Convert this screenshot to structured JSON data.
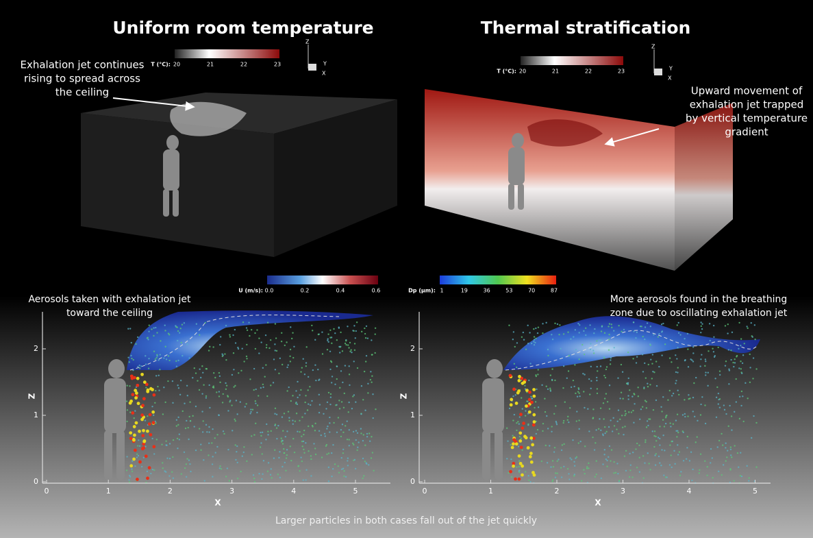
{
  "panels": [
    {
      "title": "Uniform room temperature",
      "annotation": [
        "Exhalation jet continues",
        "rising to spread across",
        "the ceiling"
      ],
      "colorbar": {
        "label": "T (°C):",
        "ticks": [
          "20",
          "21",
          "22",
          "23"
        ]
      },
      "triad": [
        "Z",
        "Y",
        "X"
      ]
    },
    {
      "title": "Thermal stratification",
      "annotation": [
        "Upward movement of",
        "exhalation jet trapped",
        "by vertical temperature",
        "gradient"
      ],
      "colorbar": {
        "label": "T (°C):",
        "ticks": [
          "20",
          "21",
          "22",
          "23"
        ]
      },
      "triad": [
        "Z",
        "Y",
        "X"
      ]
    }
  ],
  "plots": [
    {
      "annotation": [
        "Aerosols taken with exhalation jet",
        "toward the ceiling"
      ],
      "colorbar": {
        "label": "U (m/s):",
        "ticks": [
          "0.0",
          "0.2",
          "0.4",
          "0.6"
        ]
      },
      "x_label": "X",
      "z_label": "Z",
      "x_ticks": [
        "0",
        "1",
        "2",
        "3",
        "4",
        "5"
      ],
      "z_ticks": [
        "0",
        "1",
        "2"
      ]
    },
    {
      "annotation": [
        "More aerosols found in the breathing",
        "zone due to oscillating exhalation jet"
      ],
      "colorbar": {
        "label": "Dp (μm):",
        "ticks": [
          "1",
          "19",
          "36",
          "53",
          "70",
          "87"
        ]
      },
      "x_label": "X",
      "z_label": "Z",
      "x_ticks": [
        "0",
        "1",
        "2",
        "3",
        "4",
        "5"
      ],
      "z_ticks": [
        "0",
        "1",
        "2"
      ]
    }
  ],
  "footer": "Larger particles in both cases fall out of the jet quickly"
}
